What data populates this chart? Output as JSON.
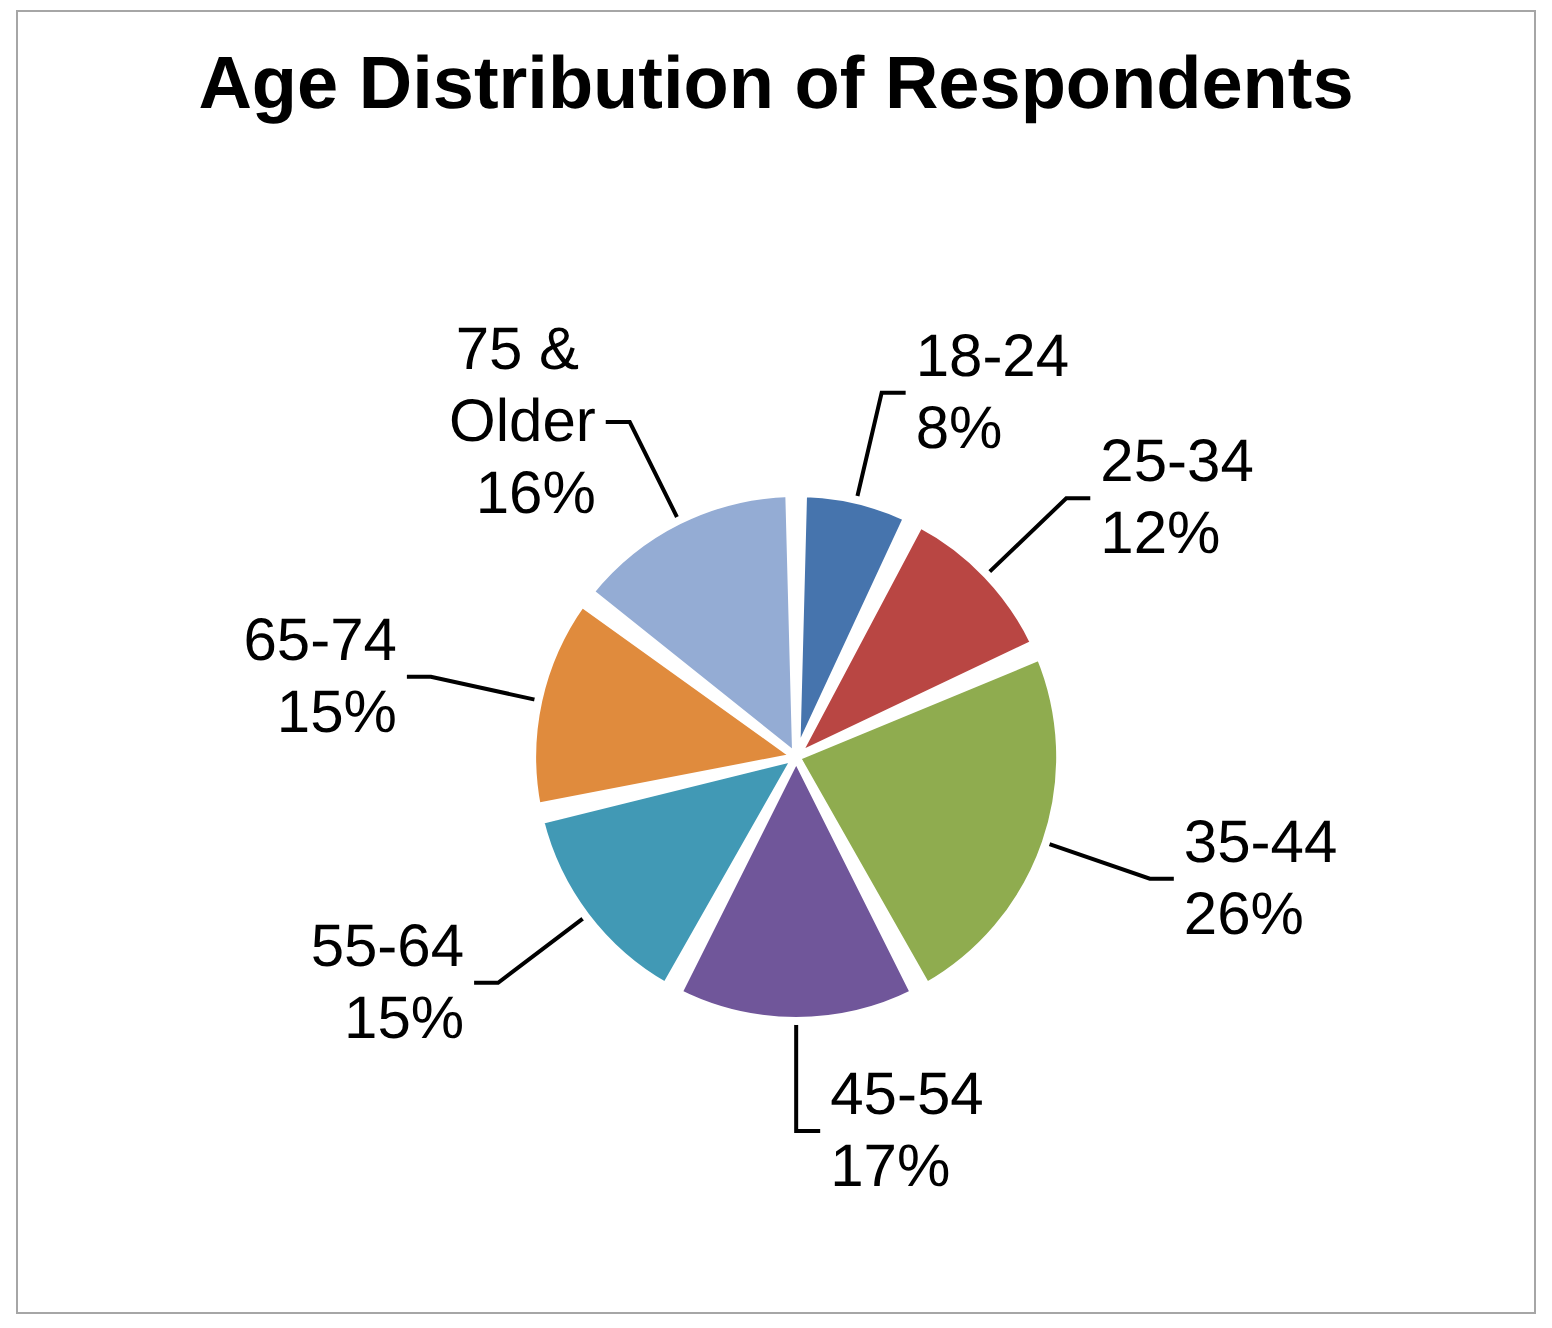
{
  "chart_data": {
    "type": "pie",
    "title": "Age Distribution of Respondents",
    "categories": [
      "18-24",
      "25-34",
      "35-44",
      "45-54",
      "55-64",
      "65-74",
      "75 & Older"
    ],
    "values": [
      8,
      12,
      26,
      17,
      15,
      15,
      16
    ],
    "value_labels": [
      "8%",
      "12%",
      "26%",
      "17%",
      "15%",
      "15%",
      "16%"
    ],
    "colors": [
      "#4674ad",
      "#b94643",
      "#8fac4f",
      "#70569a",
      "#4199b5",
      "#e08b3d",
      "#94acd4"
    ]
  }
}
